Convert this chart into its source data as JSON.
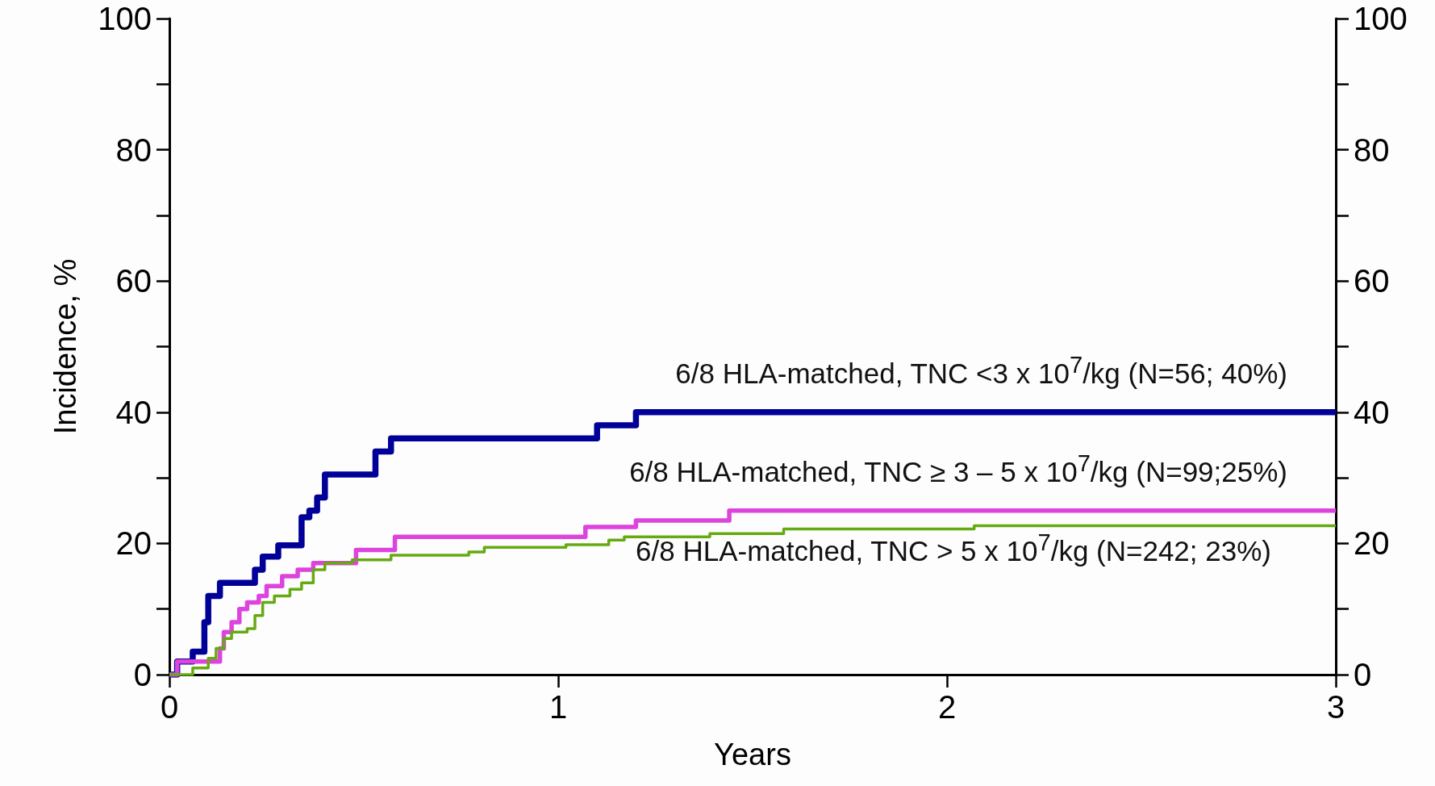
{
  "chart_data": {
    "type": "step",
    "xlabel": "Years",
    "ylabel": "Incidence, %",
    "xlim": [
      0,
      3
    ],
    "xticks": [
      0,
      1,
      2,
      3
    ],
    "ylim": [
      0,
      100
    ],
    "yticks": [
      0,
      {
        "value": 10,
        "label": null
      },
      20,
      {
        "value": 30,
        "label": null
      },
      40,
      {
        "value": 50,
        "label": null
      },
      60,
      {
        "value": 70,
        "label": null
      },
      80,
      {
        "value": 90,
        "label": null
      },
      100
    ],
    "y2lim": [
      0,
      100
    ],
    "y2ticks": [
      0,
      {
        "value": 10,
        "label": null
      },
      20,
      {
        "value": 30,
        "label": null
      },
      40,
      {
        "value": 50,
        "label": null
      },
      60,
      {
        "value": 70,
        "label": null
      },
      80,
      {
        "value": 90,
        "label": null
      },
      100
    ],
    "grid": false,
    "legend": false,
    "marker": "none",
    "line_style": "solid",
    "series": [
      {
        "name": "6/8 HLA-matched, TNC <3 x 10$^{7}$/kg (N=56; 40%)",
        "color": "#000099",
        "x": [
          0,
          0.02,
          0.06,
          0.09,
          0.1,
          0.13,
          0.22,
          0.24,
          0.28,
          0.34,
          0.36,
          0.38,
          0.4,
          0.53,
          0.57,
          1.1,
          1.2,
          3
        ],
        "values": [
          0,
          2,
          3.5,
          8,
          12,
          14,
          16,
          18,
          19.7,
          24,
          25,
          27,
          30.5,
          34,
          36,
          38,
          40,
          40
        ]
      },
      {
        "name": "6/8 HLA-matched, TNC ≥ 3 – 5 x 10$^{7}$/kg (N=99;25%)",
        "color": "#dd44dd",
        "x": [
          0,
          0.02,
          0.13,
          0.14,
          0.16,
          0.18,
          0.2,
          0.23,
          0.25,
          0.29,
          0.33,
          0.37,
          0.48,
          0.58,
          1.07,
          1.2,
          1.44,
          3
        ],
        "values": [
          0,
          2,
          4,
          6.5,
          8,
          10,
          11,
          12,
          13.5,
          15,
          16,
          17,
          19,
          21,
          22.5,
          23.5,
          25,
          25
        ]
      },
      {
        "name": "6/8 HLA-matched, TNC > 5 x 10$^{7}$/kg (N=242; 23%)",
        "color": "#66aa11",
        "x": [
          0,
          0.06,
          0.1,
          0.12,
          0.14,
          0.16,
          0.2,
          0.22,
          0.24,
          0.27,
          0.31,
          0.34,
          0.37,
          0.4,
          0.47,
          0.57,
          0.77,
          0.81,
          1.02,
          1.13,
          1.17,
          1.39,
          1.58,
          2.07,
          3
        ],
        "values": [
          0,
          1,
          2.5,
          4,
          5.5,
          6.5,
          7,
          9,
          11,
          12,
          13,
          14,
          16,
          17,
          17.5,
          18.2,
          18.7,
          19.4,
          19.8,
          20.5,
          21,
          21.5,
          22.2,
          22.7,
          22.7
        ]
      }
    ]
  }
}
